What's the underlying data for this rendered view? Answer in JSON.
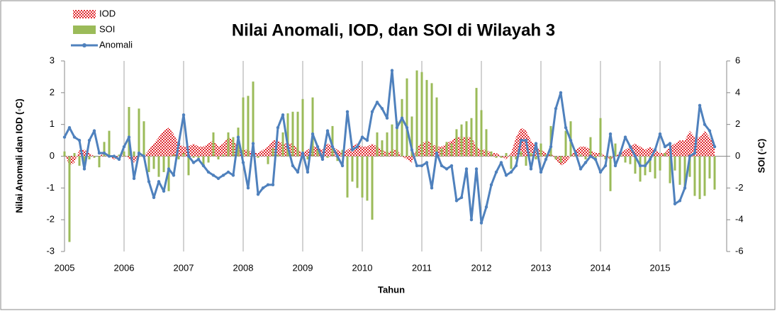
{
  "chart_data": {
    "type": "combo",
    "title": "Nilai Anomali, IOD, dan SOI di Wilayah 3",
    "xlabel": "Tahun",
    "ylabel": "Nilai Anomali dan IOD (◦C)",
    "y2label": "SOI (◦C)",
    "xlim": [
      2005,
      2016
    ],
    "xticks": [
      2005,
      2006,
      2007,
      2008,
      2009,
      2010,
      2011,
      2012,
      2013,
      2014,
      2015
    ],
    "ylim": [
      -3,
      3
    ],
    "yticks": [
      -3,
      -2,
      -1,
      0,
      1,
      2,
      3
    ],
    "y2lim": [
      -6,
      6
    ],
    "y2ticks": [
      -6,
      -4,
      -2,
      0,
      2,
      4,
      6
    ],
    "grid": "x",
    "legend": "upper left",
    "x": [
      2005,
      2005.083,
      2005.167,
      2005.25,
      2005.333,
      2005.417,
      2005.5,
      2005.583,
      2005.667,
      2005.75,
      2005.833,
      2005.917,
      2006,
      2006.083,
      2006.167,
      2006.25,
      2006.333,
      2006.417,
      2006.5,
      2006.583,
      2006.667,
      2006.75,
      2006.833,
      2006.917,
      2007,
      2007.083,
      2007.167,
      2007.25,
      2007.333,
      2007.417,
      2007.5,
      2007.583,
      2007.667,
      2007.75,
      2007.833,
      2007.917,
      2008,
      2008.083,
      2008.167,
      2008.25,
      2008.333,
      2008.417,
      2008.5,
      2008.583,
      2008.667,
      2008.75,
      2008.833,
      2008.917,
      2009,
      2009.083,
      2009.167,
      2009.25,
      2009.333,
      2009.417,
      2009.5,
      2009.583,
      2009.667,
      2009.75,
      2009.833,
      2009.917,
      2010,
      2010.083,
      2010.167,
      2010.25,
      2010.333,
      2010.417,
      2010.5,
      2010.583,
      2010.667,
      2010.75,
      2010.833,
      2010.917,
      2011,
      2011.083,
      2011.167,
      2011.25,
      2011.333,
      2011.417,
      2011.5,
      2011.583,
      2011.667,
      2011.75,
      2011.833,
      2011.917,
      2012,
      2012.083,
      2012.167,
      2012.25,
      2012.333,
      2012.417,
      2012.5,
      2012.583,
      2012.667,
      2012.75,
      2012.833,
      2012.917,
      2013,
      2013.083,
      2013.167,
      2013.25,
      2013.333,
      2013.417,
      2013.5,
      2013.583,
      2013.667,
      2013.75,
      2013.833,
      2013.917,
      2014,
      2014.083,
      2014.167,
      2014.25,
      2014.333,
      2014.417,
      2014.5,
      2014.583,
      2014.667,
      2014.75,
      2014.833,
      2014.917,
      2015,
      2015.083,
      2015.167,
      2015.25,
      2015.333,
      2015.417,
      2015.5,
      2015.583,
      2015.667,
      2015.75,
      2015.833,
      2015.917
    ],
    "series": [
      {
        "name": "IOD",
        "color": "#e0282e",
        "kind": "area",
        "values": [
          0.1,
          -0.3,
          -0.2,
          0.2,
          0.2,
          0.1,
          0.0,
          0.0,
          0.1,
          0.0,
          -0.1,
          0.0,
          0.1,
          -0.1,
          -0.2,
          0.0,
          0.0,
          0.2,
          0.4,
          0.6,
          0.8,
          0.9,
          0.7,
          0.4,
          0.3,
          0.3,
          0.4,
          0.3,
          0.3,
          0.4,
          0.5,
          0.3,
          0.4,
          0.6,
          0.5,
          0.3,
          0.2,
          0.2,
          0.1,
          0.1,
          0.2,
          0.3,
          0.5,
          0.5,
          0.4,
          0.4,
          0.4,
          0.2,
          0.1,
          0.2,
          0.3,
          0.3,
          0.2,
          0.4,
          0.3,
          0.2,
          0.1,
          0.2,
          0.3,
          0.4,
          0.3,
          0.3,
          0.4,
          0.3,
          0.2,
          0.1,
          0.2,
          0.2,
          0.0,
          -0.1,
          -0.2,
          0.3,
          0.4,
          0.5,
          0.4,
          0.3,
          0.3,
          0.4,
          0.5,
          0.6,
          0.6,
          0.6,
          0.6,
          0.3,
          0.2,
          0.2,
          0.1,
          0.1,
          0.0,
          -0.1,
          0.1,
          0.6,
          0.9,
          0.8,
          0.5,
          0.3,
          0.2,
          0.1,
          0.1,
          -0.1,
          -0.3,
          -0.2,
          0.0,
          0.2,
          0.3,
          0.3,
          0.2,
          0.1,
          0.1,
          0.0,
          -0.1,
          0.0,
          0.1,
          0.2,
          0.3,
          0.4,
          0.3,
          0.2,
          0.3,
          0.2,
          0.1,
          0.1,
          0.3,
          0.4,
          0.5,
          0.5,
          0.8,
          0.6,
          0.6,
          0.8,
          0.6,
          0.4
        ]
      },
      {
        "name": "SOI",
        "color": "#9bbb59",
        "kind": "bar",
        "axis": "y2",
        "values": [
          0.3,
          -5.4,
          0.2,
          -0.6,
          -0.6,
          -0.2,
          -0.1,
          -0.7,
          0.9,
          1.6,
          -0.1,
          0.1,
          0.3,
          3.1,
          0.3,
          3.0,
          2.2,
          -1.0,
          -0.8,
          -1.3,
          -1.0,
          -2.2,
          0.1,
          -0.2,
          0.2,
          -1.2,
          -0.1,
          -0.1,
          -0.6,
          -0.4,
          1.5,
          -0.2,
          0.1,
          1.5,
          1.2,
          1.8,
          3.7,
          3.8,
          4.7,
          -0.1,
          0.0,
          -0.5,
          0.5,
          0.1,
          1.5,
          2.7,
          2.8,
          2.8,
          3.6,
          -0.2,
          3.7,
          0.4,
          0.0,
          -0.1,
          1.9,
          -0.3,
          0.4,
          -2.6,
          -1.6,
          -2.0,
          -2.6,
          -2.8,
          -4.0,
          1.5,
          1.0,
          1.5,
          2.0,
          2.2,
          3.6,
          4.9,
          2.5,
          5.4,
          5.3,
          4.8,
          4.6,
          3.7,
          0.5,
          0.9,
          0.8,
          1.7,
          2.0,
          2.2,
          2.4,
          4.3,
          2.9,
          1.7,
          0.3,
          -0.1,
          -0.1,
          0.2,
          -0.8,
          -0.2,
          0.3,
          -0.6,
          0.2,
          -0.2,
          0.8,
          0.1,
          1.9,
          -0.2,
          -0.4,
          1.6,
          2.2,
          0.1,
          0.1,
          -0.2,
          1.2,
          -0.3,
          2.4,
          -0.2,
          -2.2,
          0.8,
          0.1,
          -0.4,
          -0.5,
          -1.1,
          -1.6,
          -1.2,
          -1.0,
          -1.4,
          -0.9,
          0.2,
          -1.7,
          -0.9,
          -1.8,
          -2.1,
          -1.3,
          -2.5,
          -2.7,
          -2.5,
          -1.4,
          -2.1
        ]
      },
      {
        "name": "Anomali",
        "color": "#4f81bd",
        "kind": "line",
        "values": [
          0.6,
          0.9,
          0.6,
          0.5,
          -0.4,
          0.5,
          0.8,
          0.1,
          0.1,
          0.0,
          0.0,
          -0.1,
          0.3,
          0.6,
          -0.7,
          0.1,
          0.0,
          -0.8,
          -1.3,
          -0.8,
          -1.1,
          -0.4,
          -0.6,
          0.4,
          1.3,
          0.0,
          -0.2,
          -0.1,
          -0.3,
          -0.5,
          -0.6,
          -0.7,
          -0.6,
          -0.5,
          -0.6,
          0.6,
          -0.2,
          -1.0,
          0.4,
          -1.2,
          -1.0,
          -0.9,
          -0.9,
          0.9,
          1.3,
          0.3,
          -0.3,
          -0.5,
          0.1,
          -0.5,
          0.7,
          0.3,
          -0.1,
          0.8,
          0.3,
          0.0,
          -0.3,
          1.4,
          0.2,
          0.3,
          0.6,
          0.5,
          1.4,
          1.7,
          1.5,
          1.2,
          2.7,
          0.9,
          1.2,
          0.9,
          0.2,
          -0.3,
          -0.3,
          -0.2,
          -1.0,
          0.1,
          -0.3,
          -0.4,
          -0.3,
          -1.4,
          -1.3,
          -0.4,
          -2.0,
          -0.4,
          -2.1,
          -1.6,
          -0.9,
          -0.5,
          -0.2,
          -0.6,
          -0.5,
          -0.3,
          0.5,
          0.5,
          -0.4,
          0.4,
          -0.5,
          -0.1,
          0.3,
          1.5,
          2.0,
          0.9,
          0.5,
          0.1,
          -0.4,
          -0.2,
          0.0,
          -0.1,
          -0.5,
          -0.3,
          0.7,
          -0.3,
          0.1,
          0.6,
          0.3,
          0.0,
          -0.3,
          -0.3,
          -0.1,
          0.2,
          0.7,
          0.3,
          0.4,
          -1.5,
          -1.4,
          -1.0,
          0.0,
          0.1,
          1.6,
          1.0,
          0.8,
          0.3
        ]
      }
    ]
  }
}
